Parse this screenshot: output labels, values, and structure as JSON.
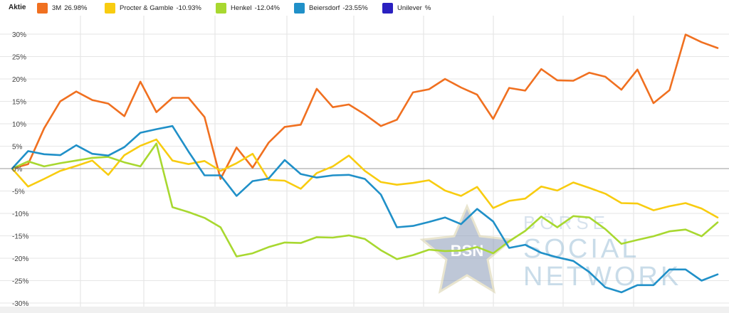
{
  "legend": {
    "title": "Aktie",
    "items": [
      {
        "name": "3M",
        "value": "26.98%",
        "color": "#f07020"
      },
      {
        "name": "Procter & Gamble",
        "value": "-10.93%",
        "color": "#f8cc10"
      },
      {
        "name": "Henkel",
        "value": "-12.04%",
        "color": "#a8d830"
      },
      {
        "name": "Beiersdorf",
        "value": "-23.55%",
        "color": "#2090c8"
      },
      {
        "name": "Unilever",
        "value": "%",
        "color": "#2a20c0"
      }
    ]
  },
  "watermark": {
    "logo_text": "BSN",
    "line1": "BÖRSE",
    "line2": "SOCIAL",
    "line3": "NETWORK"
  },
  "chart_data": {
    "type": "line",
    "ylim": [
      -30,
      30
    ],
    "yticks": [
      30,
      25,
      20,
      15,
      10,
      5,
      0,
      -5,
      -10,
      -15,
      -20,
      -25,
      -30
    ],
    "ytick_labels": [
      "30%",
      "25%",
      "20%",
      "15%",
      "10%",
      "5%",
      "0%",
      "-5%",
      "-10%",
      "-15%",
      "-20%",
      "-25%",
      "-30%"
    ],
    "grid": true,
    "legend_position": "top",
    "series": [
      {
        "name": "3M",
        "color": "#f07020",
        "values": [
          0,
          1,
          9,
          15,
          17.2,
          15.3,
          14.5,
          11.7,
          19.4,
          12.6,
          15.8,
          15.8,
          11.5,
          -2.3,
          4.7,
          0.2,
          5.8,
          9.3,
          9.8,
          17.8,
          13.7,
          14.3,
          12.1,
          9.5,
          10.9,
          17,
          17.7,
          20,
          18.1,
          16.5,
          11.1,
          18,
          17.4,
          22.2,
          19.7,
          19.6,
          21.4,
          20.5,
          17.6,
          22.1,
          14.6,
          17.5,
          29.9,
          28.2,
          26.9
        ]
      },
      {
        "name": "Procter & Gamble",
        "color": "#f8cc10",
        "values": [
          0,
          -4,
          -2.3,
          -0.5,
          0.6,
          1.8,
          -1.4,
          3,
          5.1,
          6.5,
          1.8,
          1,
          1.7,
          -0.5,
          1.2,
          3.3,
          -2.5,
          -2.7,
          -4.5,
          -1,
          0.5,
          2.9,
          -0.5,
          -3,
          -3.6,
          -3.2,
          -2.6,
          -4.9,
          -6.1,
          -4.1,
          -8.8,
          -7.2,
          -6.7,
          -4,
          -4.9,
          -3.1,
          -4.3,
          -5.6,
          -7.7,
          -7.8,
          -9.3,
          -8.4,
          -7.7,
          -8.9,
          -10.9
        ]
      },
      {
        "name": "Henkel",
        "color": "#a8d830",
        "values": [
          0,
          1.6,
          0.5,
          1.2,
          1.8,
          2.4,
          2.6,
          1.4,
          0.5,
          5.6,
          -8.6,
          -9.7,
          -11,
          -13.1,
          -19.6,
          -18.9,
          -17.5,
          -16.5,
          -16.6,
          -15.3,
          -15.4,
          -14.9,
          -15.7,
          -18.2,
          -20.2,
          -19.3,
          -18.1,
          -18.4,
          -18.3,
          -17.5,
          -18.9,
          -16.2,
          -13.9,
          -10.7,
          -13.1,
          -10.6,
          -10.9,
          -13.5,
          -16.8,
          -15.9,
          -15.1,
          -14,
          -13.6,
          -15.1,
          -12
        ]
      },
      {
        "name": "Beiersdorf",
        "color": "#2090c8",
        "values": [
          0,
          3.9,
          3.2,
          3,
          5.2,
          3.3,
          2.9,
          4.8,
          8,
          8.8,
          9.5,
          3.8,
          -1.5,
          -1.5,
          -6.1,
          -2.8,
          -2.2,
          1.9,
          -1.2,
          -2,
          -1.5,
          -1.4,
          -2.3,
          -5.8,
          -13.1,
          -12.8,
          -11.9,
          -10.9,
          -12.4,
          -9,
          -11.8,
          -17.7,
          -17,
          -18.8,
          -19.8,
          -20.6,
          -23.1,
          -26.5,
          -27.6,
          -26,
          -26,
          -22.5,
          -22.5,
          -25,
          -23.6
        ]
      },
      {
        "name": "Unilever",
        "color": "#2a20c0",
        "values": []
      }
    ]
  }
}
